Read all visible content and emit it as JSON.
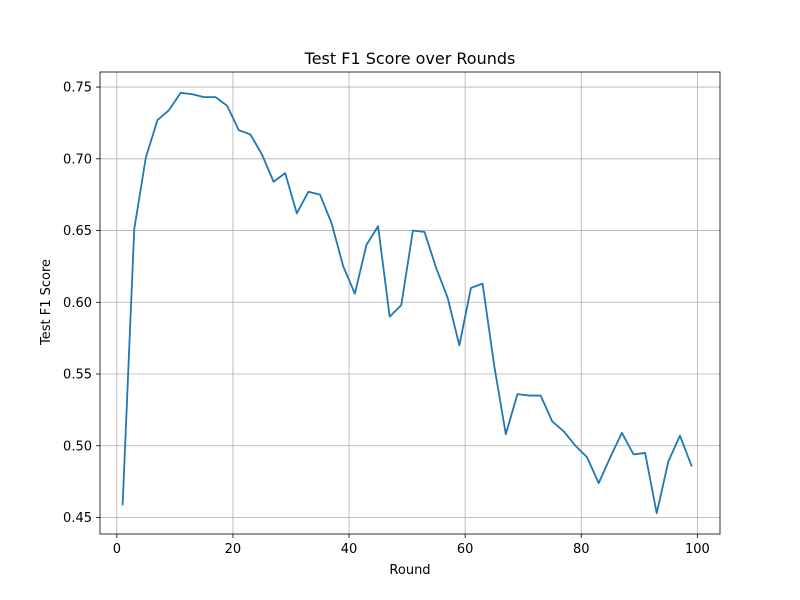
{
  "chart_data": {
    "type": "line",
    "title": "Test F1 Score over Rounds",
    "xlabel": "Round",
    "ylabel": "Test F1 Score",
    "xlim": [
      -2.9,
      103.9
    ],
    "ylim": [
      0.4385,
      0.7605
    ],
    "grid": true,
    "xticks": [
      0,
      20,
      40,
      60,
      80,
      100
    ],
    "xtick_labels": [
      "0",
      "20",
      "40",
      "60",
      "80",
      "100"
    ],
    "yticks": [
      0.45,
      0.5,
      0.55,
      0.6,
      0.65,
      0.7,
      0.75
    ],
    "ytick_labels": [
      "0.45",
      "0.50",
      "0.55",
      "0.60",
      "0.65",
      "0.70",
      "0.75"
    ],
    "series": [
      {
        "name": "Test F1 Score",
        "color": "#1f77b4",
        "x": [
          1,
          3,
          5,
          7,
          9,
          11,
          13,
          15,
          17,
          19,
          21,
          23,
          25,
          27,
          29,
          31,
          33,
          35,
          37,
          39,
          41,
          43,
          45,
          47,
          49,
          51,
          53,
          55,
          57,
          59,
          61,
          63,
          65,
          67,
          69,
          71,
          73,
          75,
          77,
          79,
          81,
          83,
          85,
          87,
          89,
          91,
          93,
          95,
          97,
          99
        ],
        "y": [
          0.459,
          0.651,
          0.701,
          0.727,
          0.734,
          0.746,
          0.745,
          0.743,
          0.743,
          0.737,
          0.72,
          0.717,
          0.703,
          0.684,
          0.69,
          0.662,
          0.677,
          0.675,
          0.655,
          0.625,
          0.606,
          0.64,
          0.653,
          0.59,
          0.598,
          0.65,
          0.649,
          0.624,
          0.603,
          0.57,
          0.61,
          0.613,
          0.556,
          0.508,
          0.536,
          0.535,
          0.535,
          0.517,
          0.51,
          0.5,
          0.492,
          0.474,
          0.492,
          0.509,
          0.494,
          0.495,
          0.453,
          0.489,
          0.507,
          0.486
        ]
      }
    ]
  }
}
